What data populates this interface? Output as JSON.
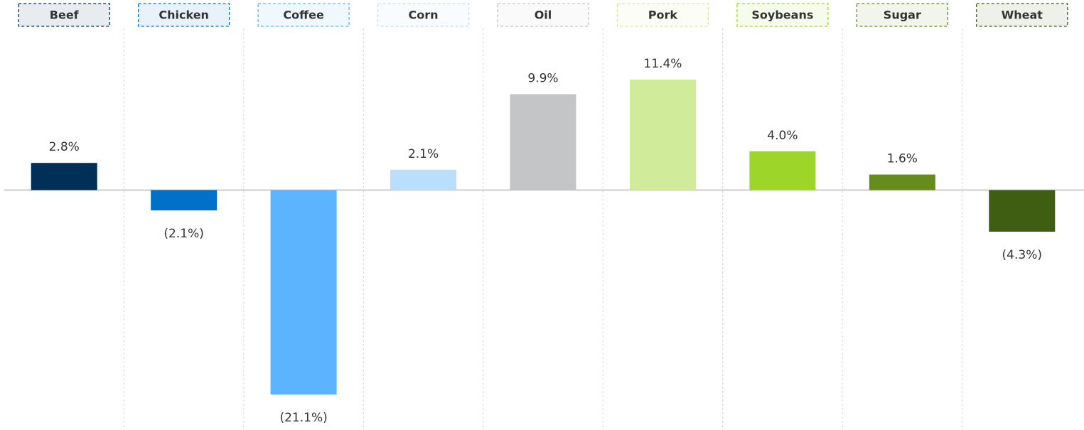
{
  "chart_data": {
    "type": "bar",
    "categories": [
      "Beef",
      "Chicken",
      "Coffee",
      "Corn",
      "Oil",
      "Pork",
      "Soybeans",
      "Sugar",
      "Wheat"
    ],
    "values": [
      2.8,
      -2.1,
      -21.1,
      2.1,
      9.9,
      11.4,
      4.0,
      1.6,
      -4.3
    ],
    "value_labels": [
      "2.8%",
      "(2.1%)",
      "(21.1%)",
      "2.1%",
      "9.9%",
      "11.4%",
      "4.0%",
      "1.6%",
      "(4.3%)"
    ],
    "colors": [
      "#003057",
      "#0070c8",
      "#5cb4ff",
      "#b9dffc",
      "#c4c5c7",
      "#d0eb9a",
      "#9dd628",
      "#658d1b",
      "#3f5e11"
    ]
  }
}
